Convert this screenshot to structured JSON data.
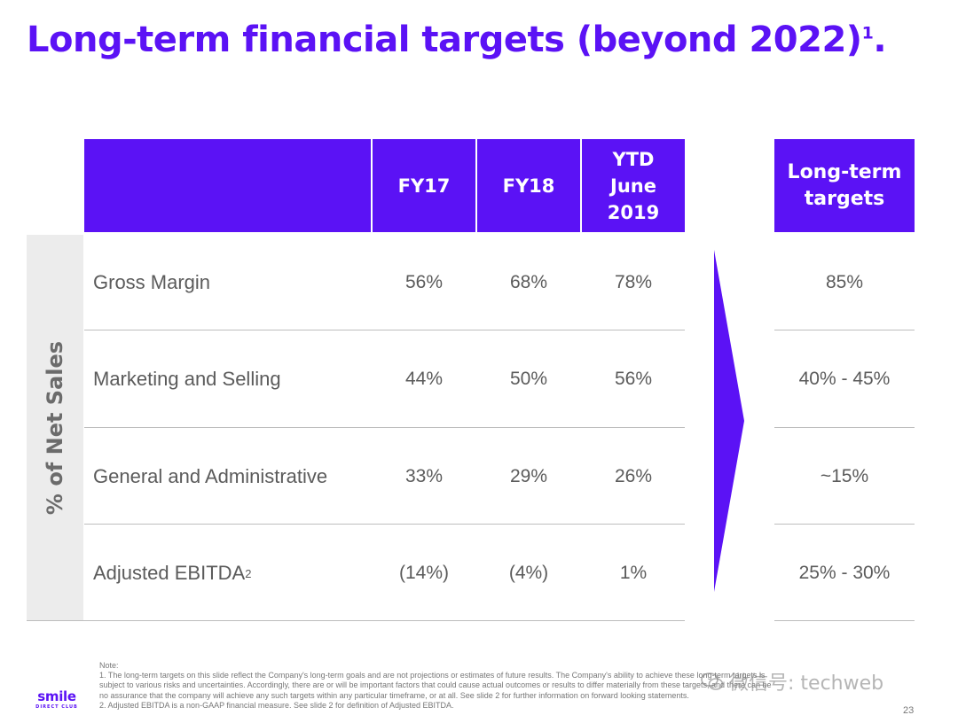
{
  "slide": {
    "title": "Long-term financial targets (beyond 2022)",
    "title_footnote": "1",
    "title_end": ".",
    "page_number": "23"
  },
  "table": {
    "headers": {
      "fy17": "FY17",
      "fy18": "FY18",
      "ytd": [
        "YTD",
        "June",
        "2019"
      ],
      "long_term": [
        "Long-term",
        "targets"
      ]
    },
    "side_label": "% of Net Sales",
    "rows": [
      {
        "label": "Gross Margin",
        "sup": "",
        "fy17": "56%",
        "fy18": "68%",
        "ytd": "78%",
        "target": "85%"
      },
      {
        "label": "Marketing and Selling",
        "sup": "",
        "fy17": "44%",
        "fy18": "50%",
        "ytd": "56%",
        "target": "40% - 45%"
      },
      {
        "label": "General and Administrative",
        "sup": "",
        "fy17": "33%",
        "fy18": "29%",
        "ytd": "26%",
        "target": "~15%"
      },
      {
        "label": "Adjusted EBITDA",
        "sup": "2",
        "fy17": "(14%)",
        "fy18": "(4%)",
        "ytd": "1%",
        "target": "25% - 30%"
      }
    ]
  },
  "notes": {
    "heading": "Note:",
    "lines": [
      "1. The long-term targets on this slide reflect the Company's long-term goals and are not projections or estimates of future results. The Company's ability to achieve these long-term targets is",
      "subject to various risks and uncertainties. Accordingly, there are or will be important factors that could cause actual outcomes or results to differ materially from these targets, and there can be",
      "no assurance that the company will achieve any such targets within any particular timeframe, or at all. See slide 2 for further information on forward looking statements.",
      "2. Adjusted EBITDA is a non-GAAP financial measure. See slide 2 for definition of Adjusted EBITDA."
    ]
  },
  "logo": {
    "word": "smile",
    "sub": "DIRECT CLUB"
  },
  "watermark": {
    "text": "微信号: techweb",
    "icon": "wechat-icon"
  },
  "colors": {
    "brand_purple": "#5b12f5",
    "text_gray": "#5b5b5b",
    "side_band": "#ececec",
    "rule": "#bdbdbd"
  }
}
